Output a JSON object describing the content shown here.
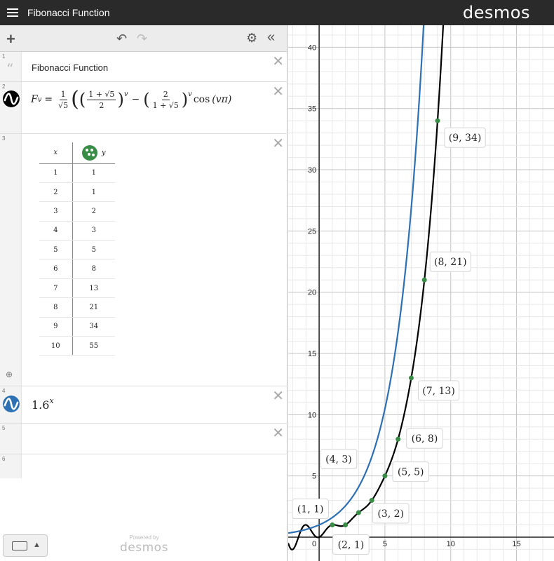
{
  "header": {
    "title": "Fibonacci Function",
    "brand": "desmos"
  },
  "toolbar": {
    "add": "+",
    "undo": "↶",
    "redo": "↷",
    "settings": "⚙",
    "collapse": "«"
  },
  "expressions": [
    {
      "index": "1",
      "type": "note",
      "text": "Fibonacci Function"
    },
    {
      "index": "2",
      "type": "expression",
      "parts": {
        "lhs": "F",
        "sub": "v",
        "eq": "=",
        "one": "1",
        "sqrt5": "√5",
        "onepsqrt5": "1 + √5",
        "two": "2",
        "exp": "v",
        "minus": "−",
        "cos": "cos",
        "vpi": "(vπ)"
      }
    },
    {
      "index": "3",
      "type": "table",
      "headers": [
        "x",
        "y"
      ],
      "rows": [
        [
          "1",
          "1"
        ],
        [
          "2",
          "1"
        ],
        [
          "3",
          "2"
        ],
        [
          "4",
          "3"
        ],
        [
          "5",
          "5"
        ],
        [
          "6",
          "8"
        ],
        [
          "7",
          "13"
        ],
        [
          "8",
          "21"
        ],
        [
          "9",
          "34"
        ],
        [
          "10",
          "55"
        ]
      ]
    },
    {
      "index": "4",
      "type": "expression",
      "base": "1.6",
      "exp": "x"
    },
    {
      "index": "5",
      "type": "empty"
    },
    {
      "index": "6",
      "type": "empty"
    }
  ],
  "footer": {
    "powered_by": "Powered by",
    "brand": "desmos"
  },
  "colors": {
    "black_curve": "#000000",
    "blue_curve": "#2d70b3",
    "points": "#388c46"
  },
  "chart_data": {
    "type": "scatter",
    "xlim": [
      -2.35,
      17.85
    ],
    "ylim": [
      -1.95,
      41.8
    ],
    "x_ticks": [
      "5",
      "10",
      "15"
    ],
    "y_ticks": [
      "5",
      "10",
      "15",
      "20",
      "25",
      "30",
      "35",
      "40"
    ],
    "origin_label": "0",
    "grid": true,
    "points": [
      {
        "x": 1,
        "y": 1,
        "label": "(1, 1)"
      },
      {
        "x": 2,
        "y": 1,
        "label": "(2, 1)"
      },
      {
        "x": 3,
        "y": 2,
        "label": "(3, 2)"
      },
      {
        "x": 4,
        "y": 3,
        "label": "(4, 3)"
      },
      {
        "x": 5,
        "y": 5,
        "label": "(5, 5)"
      },
      {
        "x": 6,
        "y": 8,
        "label": "(6, 8)"
      },
      {
        "x": 7,
        "y": 13,
        "label": "(7, 13)"
      },
      {
        "x": 8,
        "y": 21,
        "label": "(8, 21)"
      },
      {
        "x": 9,
        "y": 34,
        "label": "(9, 34)"
      }
    ]
  }
}
